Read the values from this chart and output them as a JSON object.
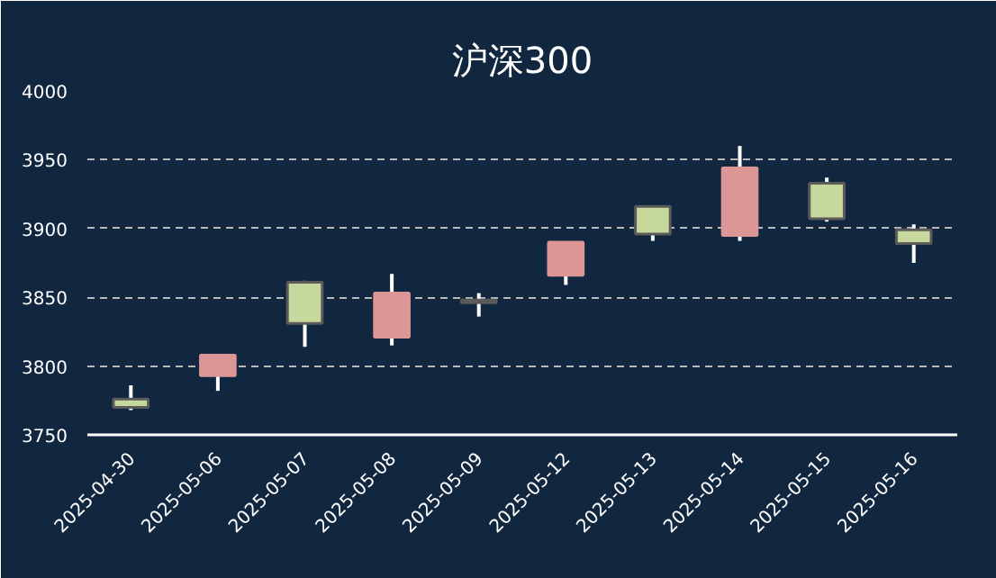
{
  "chart_data": {
    "type": "candlestick",
    "title": "沪深300",
    "categories": [
      "2025-04-30",
      "2025-05-06",
      "2025-05-07",
      "2025-05-08",
      "2025-05-09",
      "2025-05-12",
      "2025-05-13",
      "2025-05-14",
      "2025-05-15",
      "2025-05-16"
    ],
    "ohlc": [
      [
        3776,
        3786,
        3768,
        3770
      ],
      [
        3793,
        3808,
        3782,
        3808
      ],
      [
        3861,
        3862,
        3814,
        3831
      ],
      [
        3821,
        3867,
        3815,
        3853
      ],
      [
        3848,
        3853,
        3836,
        3846
      ],
      [
        3866,
        3890,
        3859,
        3890
      ],
      [
        3916,
        3916,
        3891,
        3896
      ],
      [
        3895,
        3960,
        3891,
        3944
      ],
      [
        3933,
        3937,
        3905,
        3907
      ],
      [
        3899,
        3903,
        3875,
        3889
      ]
    ],
    "colors": [
      "#c6d89c",
      "#dc9696",
      "#c6d89c",
      "#dc9696",
      "#c6d89c",
      "#dc9696",
      "#c6d89c",
      "#dc9696",
      "#c6d89c",
      "#c6d89c"
    ],
    "ylim": [
      3750,
      4000
    ],
    "yticks": [
      3750,
      3800,
      3850,
      3900,
      3950,
      4000
    ],
    "grid": "y"
  }
}
